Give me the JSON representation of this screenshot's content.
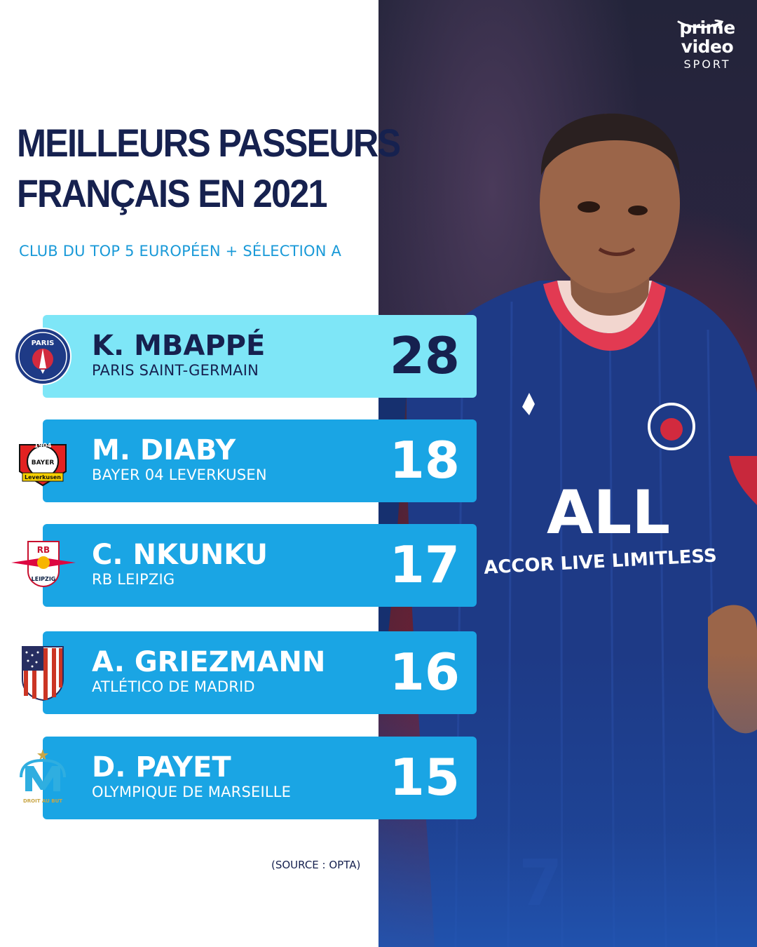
{
  "brand": {
    "line1": "prime",
    "line2": "video",
    "line3": "SPORT"
  },
  "title": {
    "line1": "MEILLEURS PASSEURS",
    "line2": "FRANÇAIS EN 2021"
  },
  "subtitle": "CLUB DU TOP 5 EUROPÉEN + SÉLECTION A",
  "ranking": [
    {
      "name": "K. MBAPPÉ",
      "club": "PARIS SAINT-GERMAIN",
      "value": "28",
      "crest": "psg-crest-icon"
    },
    {
      "name": "M. DIABY",
      "club": "BAYER 04 LEVERKUSEN",
      "value": "18",
      "crest": "leverkusen-crest-icon"
    },
    {
      "name": "C. NKUNKU",
      "club": "RB LEIPZIG",
      "value": "17",
      "crest": "rb-leipzig-crest-icon"
    },
    {
      "name": "A. GRIEZMANN",
      "club": "ATLÉTICO DE MADRID",
      "value": "16",
      "crest": "atletico-crest-icon"
    },
    {
      "name": "D. PAYET",
      "club": "OLYMPIQUE DE MARSEILLE",
      "value": "15",
      "crest": "om-crest-icon"
    }
  ],
  "crest_text": {
    "psg": "PARIS",
    "leverkusen_year": "1904",
    "leverkusen_word": "BAYER",
    "leverkusen_name": "Leverkusen",
    "rb": "RB",
    "rb_name": "LEIPZIG",
    "om_motto": "DROIT AU BUT"
  },
  "jersey": {
    "sponsor1": "ALL",
    "sponsor2": "ACCOR LIVE LIMITLESS",
    "number": "7"
  },
  "source": "(SOURCE : OPTA)",
  "colors": {
    "navy": "#16214f",
    "accent_blue": "#1aa5e4",
    "highlight": "#7ee6f7",
    "subtitle_blue": "#1a9ad8"
  }
}
